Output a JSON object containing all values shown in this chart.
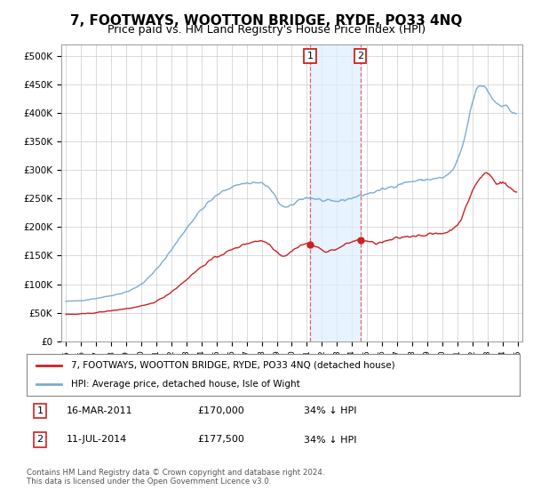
{
  "title": "7, FOOTWAYS, WOOTTON BRIDGE, RYDE, PO33 4NQ",
  "subtitle": "Price paid vs. HM Land Registry's House Price Index (HPI)",
  "title_fontsize": 11,
  "subtitle_fontsize": 9,
  "ylim": [
    0,
    520000
  ],
  "yticks": [
    0,
    50000,
    100000,
    150000,
    200000,
    250000,
    300000,
    350000,
    400000,
    450000,
    500000
  ],
  "ytick_labels": [
    "£0",
    "£50K",
    "£100K",
    "£150K",
    "£200K",
    "£250K",
    "£300K",
    "£350K",
    "£400K",
    "£450K",
    "£500K"
  ],
  "hpi_color": "#7aadd4",
  "price_color": "#cc2222",
  "marker_color": "#cc2222",
  "shade_color": "#ddeeff",
  "bg_color": "#ffffff",
  "grid_color": "#cccccc",
  "sale1_date": "16-MAR-2011",
  "sale1_price": 170000,
  "sale2_date": "11-JUL-2014",
  "sale2_price": 177500,
  "sale1_x": 2011.21,
  "sale2_x": 2014.54,
  "legend_line1": "7, FOOTWAYS, WOOTTON BRIDGE, RYDE, PO33 4NQ (detached house)",
  "legend_line2": "HPI: Average price, detached house, Isle of Wight",
  "footer": "Contains HM Land Registry data © Crown copyright and database right 2024.\nThis data is licensed under the Open Government Licence v3.0."
}
